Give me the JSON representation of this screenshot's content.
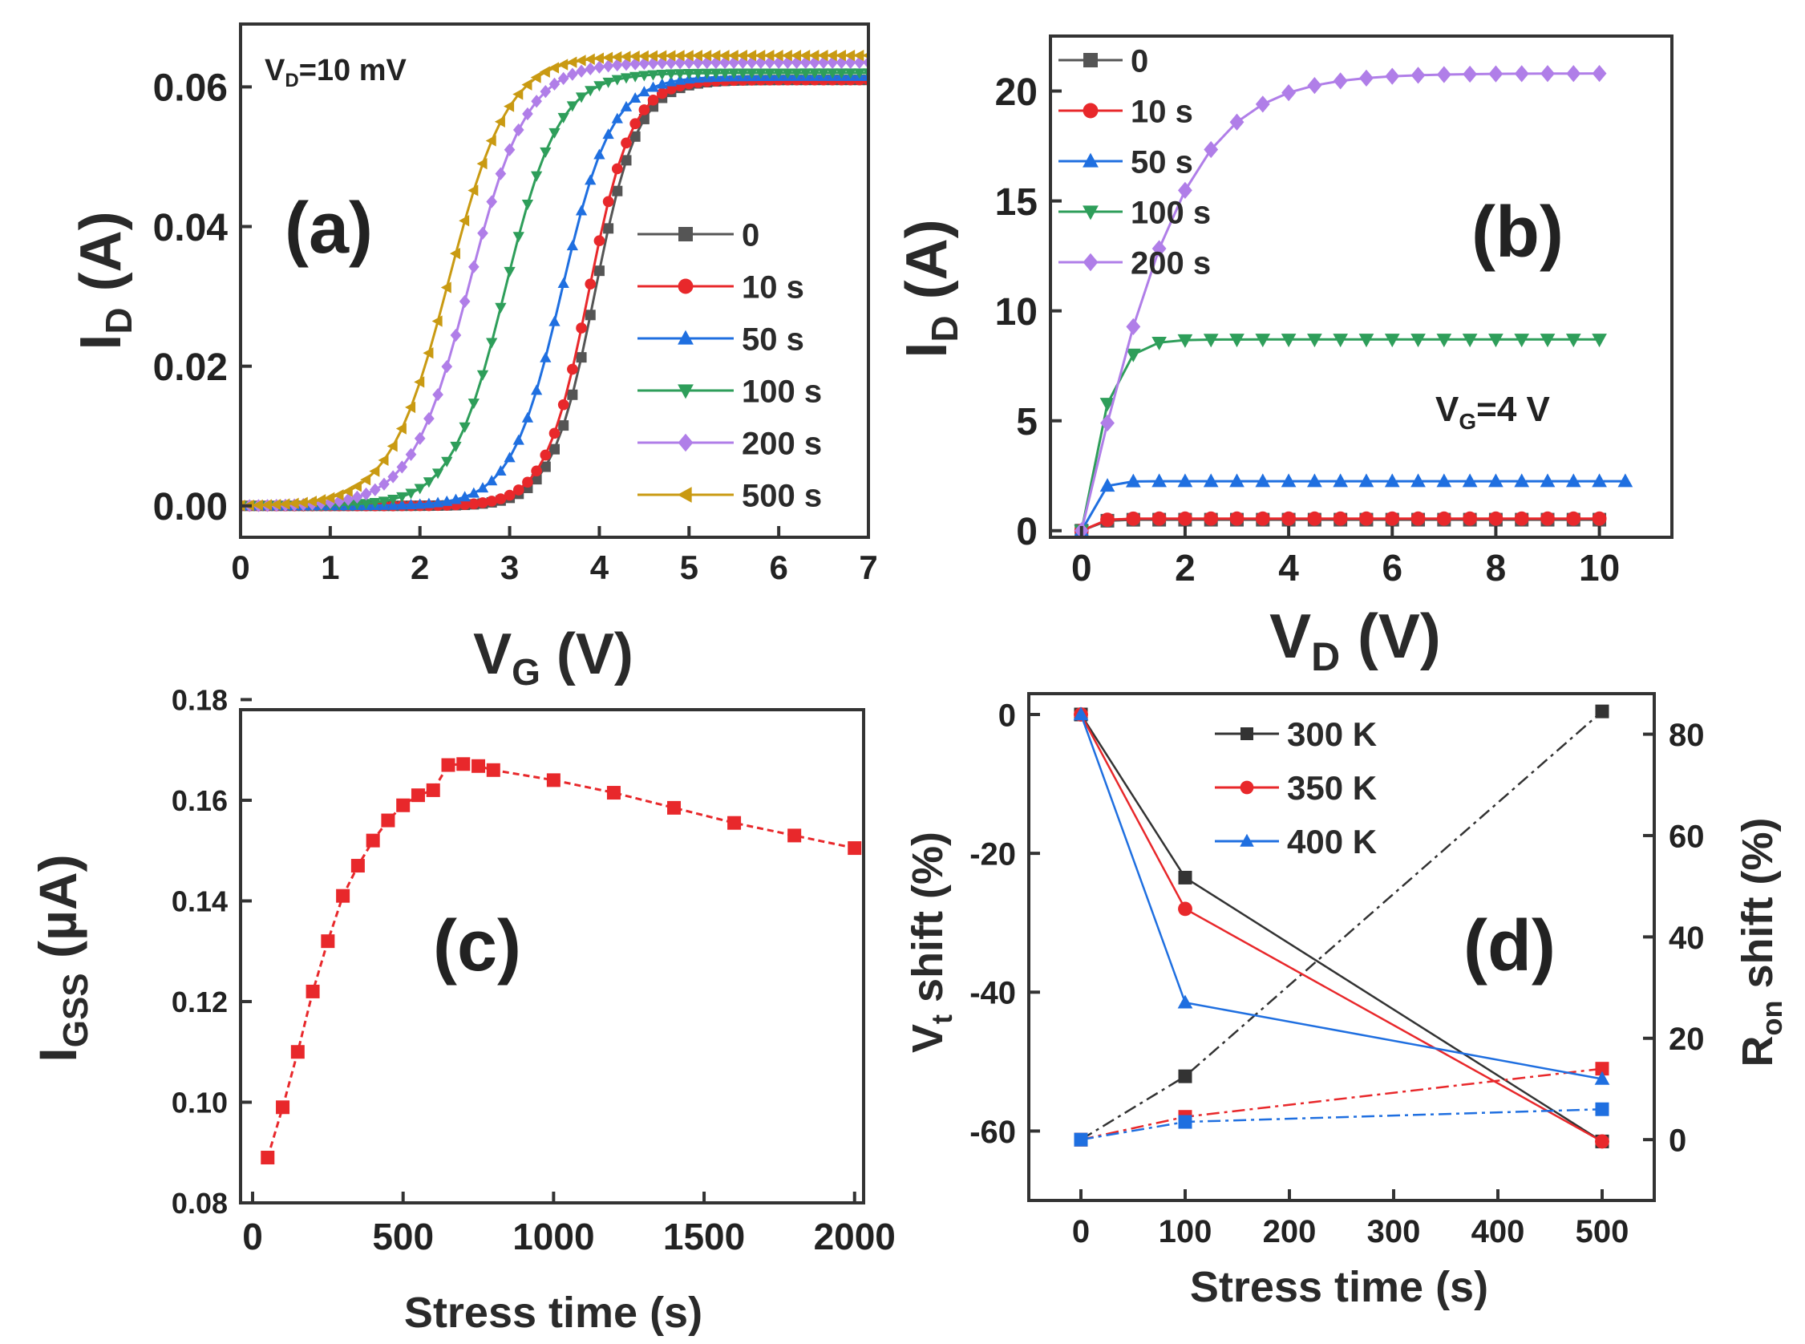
{
  "figure": "four-panel transistor stress characterization",
  "chart_data": [
    {
      "id": "a",
      "type": "line",
      "panel_label": "(a)",
      "annotation": "V_D=10 mV",
      "xlabel": "V_G (V)",
      "ylabel": "I_D (A)",
      "xlim": [
        0,
        7
      ],
      "ylim": [
        -0.0045,
        0.069
      ],
      "xticks": [
        0,
        1,
        2,
        3,
        4,
        5,
        6,
        7
      ],
      "yticks": [
        0.0,
        0.02,
        0.04,
        0.06
      ],
      "ytick_labels": [
        "0.00",
        "0.02",
        "0.04",
        "0.06"
      ],
      "model": "sigmoid",
      "series": [
        {
          "name": "0",
          "color": "#555555",
          "marker": "square",
          "vth": 3.95,
          "imax": 0.061,
          "width": 0.24
        },
        {
          "name": "10 s",
          "color": "#e8282b",
          "marker": "circle",
          "vth": 3.88,
          "imax": 0.061,
          "width": 0.24
        },
        {
          "name": "50 s",
          "color": "#1f6fe0",
          "marker": "triangle-up",
          "vth": 3.58,
          "imax": 0.0615,
          "width": 0.28
        },
        {
          "name": "100 s",
          "color": "#2e9e5a",
          "marker": "triangle-down",
          "vth": 2.95,
          "imax": 0.062,
          "width": 0.3
        },
        {
          "name": "200 s",
          "color": "#b07ee8",
          "marker": "diamond",
          "vth": 2.55,
          "imax": 0.0635,
          "width": 0.32
        },
        {
          "name": "500 s",
          "color": "#c99a12",
          "marker": "triangle-left",
          "vth": 2.32,
          "imax": 0.0645,
          "width": 0.33
        }
      ]
    },
    {
      "id": "b",
      "type": "line",
      "panel_label": "(b)",
      "annotation": "V_G=4 V",
      "xlabel": "V_D (V)",
      "ylabel": "I_D (A)",
      "xlim": [
        -0.6,
        11.4
      ],
      "ylim": [
        -0.3,
        22.5
      ],
      "xticks": [
        0,
        2,
        4,
        6,
        8,
        10
      ],
      "yticks": [
        0,
        5,
        10,
        15,
        20
      ],
      "model": "saturation",
      "series": [
        {
          "name": "0",
          "color": "#555555",
          "marker": "square",
          "isat": 0.5,
          "k": 3.0,
          "end": 10.2
        },
        {
          "name": "10 s",
          "color": "#e8282b",
          "marker": "circle",
          "isat": 0.55,
          "k": 3.0,
          "end": 10.2
        },
        {
          "name": "50 s",
          "color": "#1f6fe0",
          "marker": "triangle-up",
          "isat": 2.25,
          "k": 3.0,
          "end": 10.5
        },
        {
          "name": "100 s",
          "color": "#2e9e5a",
          "marker": "triangle-down",
          "isat": 8.7,
          "k": 1.6,
          "end": 10.2
        },
        {
          "name": "200 s",
          "color": "#b07ee8",
          "marker": "diamond",
          "isat": 20.8,
          "k": 0.48,
          "end": 10.2
        }
      ]
    },
    {
      "id": "c",
      "type": "line",
      "panel_label": "(c)",
      "xlabel": "Stress time (s)",
      "ylabel": "I_GSS (µA)",
      "xlim": [
        -40,
        2030
      ],
      "ylim": [
        0.08,
        0.178
      ],
      "xticks": [
        0,
        500,
        1000,
        1500,
        2000
      ],
      "yticks": [
        0.08,
        0.1,
        0.12,
        0.14,
        0.16,
        0.18
      ],
      "ytick_labels": [
        "0.08",
        "0.10",
        "0.12",
        "0.14",
        "0.16",
        "0.18"
      ],
      "series": [
        {
          "name": "I_GSS",
          "color": "#e8282b",
          "marker": "square",
          "x": [
            50,
            100,
            150,
            200,
            250,
            300,
            350,
            400,
            450,
            500,
            550,
            600,
            650,
            700,
            750,
            800,
            1000,
            1200,
            1400,
            1600,
            1800,
            2000
          ],
          "y": [
            0.089,
            0.099,
            0.11,
            0.122,
            0.132,
            0.141,
            0.147,
            0.152,
            0.156,
            0.159,
            0.161,
            0.162,
            0.167,
            0.1672,
            0.1668,
            0.166,
            0.164,
            0.1615,
            0.1585,
            0.1555,
            0.153,
            0.1505
          ]
        }
      ]
    },
    {
      "id": "d",
      "type": "line",
      "panel_label": "(d)",
      "xlabel": "Stress time (s)",
      "ylabel_left": "V_t shift (%)",
      "ylabel_right": "R_on shift (%)",
      "xlim": [
        -50,
        550
      ],
      "ylim_left": [
        -70,
        3
      ],
      "ylim_right": [
        -12,
        88
      ],
      "xticks": [
        0,
        100,
        200,
        300,
        400,
        500
      ],
      "yticks_left": [
        0,
        -20,
        -40,
        -60
      ],
      "yticks_right": [
        0,
        20,
        40,
        60,
        80
      ],
      "x": [
        0,
        100,
        500
      ],
      "series": [
        {
          "name": "300 K",
          "color": "#333333",
          "marker": "square",
          "vt": [
            0,
            -23.5,
            -61.5
          ],
          "ron": [
            0,
            12.5,
            84.5
          ]
        },
        {
          "name": "350 K",
          "color": "#e8282b",
          "marker": "circle",
          "vt": [
            0,
            -28,
            -61.5
          ],
          "ron": [
            0,
            4.5,
            14
          ]
        },
        {
          "name": "400 K",
          "color": "#1f6fe0",
          "marker": "triangle-up",
          "vt": [
            0,
            -41.5,
            -52.5
          ],
          "ron": [
            0,
            3.5,
            6
          ]
        }
      ]
    }
  ]
}
